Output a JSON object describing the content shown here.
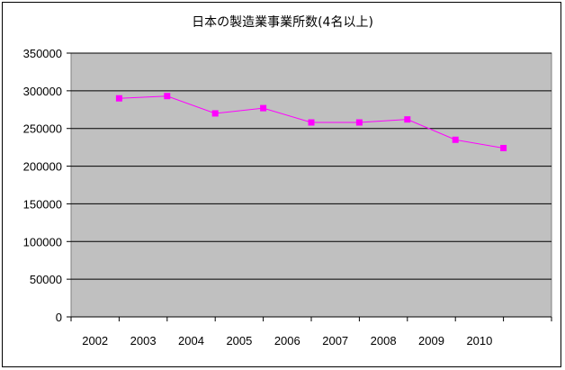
{
  "chart_data": {
    "type": "line",
    "title": "日本の製造業事業所数(4名以上)",
    "xlabel": "",
    "ylabel": "",
    "ylim": [
      0,
      350000
    ],
    "yticks": [
      0,
      50000,
      100000,
      150000,
      200000,
      250000,
      300000,
      350000
    ],
    "x_tick_labels": [
      "2002",
      "2003",
      "2004",
      "2005",
      "2006",
      "2007",
      "2008",
      "2009",
      "2010"
    ],
    "series": [
      {
        "values": [
          290000,
          293000,
          270000,
          277000,
          258000,
          258000,
          262000,
          235000,
          224000
        ]
      }
    ],
    "grid": true,
    "legend": "none",
    "colors": {
      "plot_background": "#c0c0c0",
      "grid": "#000000",
      "series_line": "#ff00ff",
      "series_marker": "#ff00ff"
    }
  }
}
